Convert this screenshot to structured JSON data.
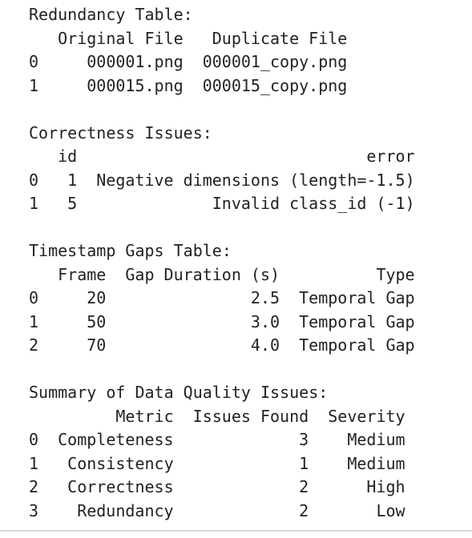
{
  "sections": [
    {
      "title": "Redundancy Table:",
      "columns": [
        "Original File",
        "Duplicate File"
      ],
      "rows": [
        {
          "index": 0,
          "cells": [
            "000001.png",
            "000001_copy.png"
          ]
        },
        {
          "index": 1,
          "cells": [
            "000015.png",
            "000015_copy.png"
          ]
        }
      ]
    },
    {
      "title": "Correctness Issues:",
      "columns": [
        "id",
        "error"
      ],
      "rows": [
        {
          "index": 0,
          "cells": [
            1,
            "Negative dimensions (length=-1.5)"
          ]
        },
        {
          "index": 1,
          "cells": [
            5,
            "Invalid class_id (-1)"
          ]
        }
      ]
    },
    {
      "title": "Timestamp Gaps Table:",
      "columns": [
        "Frame",
        "Gap Duration (s)",
        "Type"
      ],
      "rows": [
        {
          "index": 0,
          "cells": [
            20,
            "2.5",
            "Temporal Gap"
          ]
        },
        {
          "index": 1,
          "cells": [
            50,
            "3.0",
            "Temporal Gap"
          ]
        },
        {
          "index": 2,
          "cells": [
            70,
            "4.0",
            "Temporal Gap"
          ]
        }
      ]
    },
    {
      "title": "Summary of Data Quality Issues:",
      "columns": [
        "Metric",
        "Issues Found",
        "Severity"
      ],
      "rows": [
        {
          "index": 0,
          "cells": [
            "Completeness",
            3,
            "Medium"
          ]
        },
        {
          "index": 1,
          "cells": [
            "Consistency",
            1,
            "Medium"
          ]
        },
        {
          "index": 2,
          "cells": [
            "Correctness",
            2,
            "High"
          ]
        },
        {
          "index": 3,
          "cells": [
            "Redundancy",
            2,
            "Low"
          ]
        }
      ]
    }
  ]
}
